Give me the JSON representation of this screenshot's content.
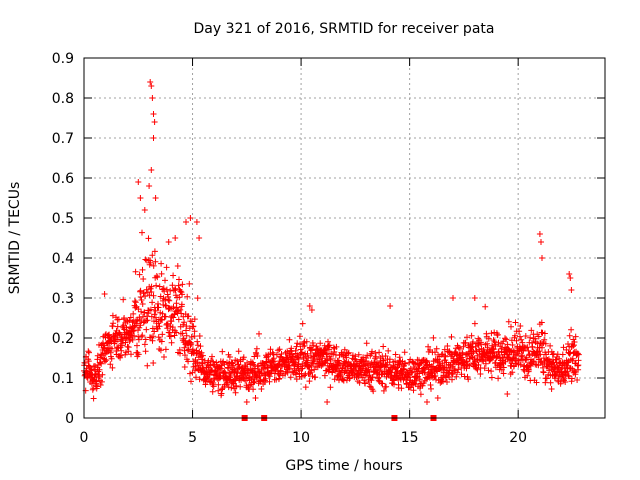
{
  "chart_data": {
    "type": "scatter",
    "title": "Day 321 of 2016, SRMTID for receiver pata",
    "xlabel": "GPS time / hours",
    "ylabel": "SRMTID / TECUs",
    "xlim": [
      0,
      24
    ],
    "ylim": [
      0,
      0.9
    ],
    "x_ticks": [
      0,
      5,
      10,
      15,
      20
    ],
    "x_tick_labels": [
      "0",
      "5",
      "10",
      "15",
      "20"
    ],
    "y_ticks": [
      0,
      0.1,
      0.2,
      0.3,
      0.4,
      0.5,
      0.6,
      0.7,
      0.8,
      0.9
    ],
    "y_tick_labels": [
      "0",
      "0.1",
      "0.2",
      "0.3",
      "0.4",
      "0.5",
      "0.6",
      "0.7",
      "0.8",
      "0.9"
    ],
    "grid": true,
    "marker_color": "#ff0000",
    "series": [
      {
        "name": "SRMTID",
        "marker": "plus",
        "profile_hours": [
          0.0,
          0.5,
          1.0,
          1.5,
          2.0,
          2.5,
          3.0,
          3.5,
          4.0,
          4.5,
          5.0,
          5.5,
          6.0,
          7.0,
          8.0,
          9.0,
          10.0,
          11.0,
          12.0,
          13.0,
          14.0,
          15.0,
          16.0,
          17.0,
          18.0,
          19.0,
          20.0,
          20.5,
          21.0,
          21.5,
          22.0,
          22.5,
          22.8
        ],
        "profile_median": [
          0.11,
          0.1,
          0.17,
          0.21,
          0.2,
          0.24,
          0.3,
          0.26,
          0.28,
          0.24,
          0.18,
          0.12,
          0.11,
          0.11,
          0.12,
          0.13,
          0.14,
          0.15,
          0.13,
          0.12,
          0.12,
          0.11,
          0.12,
          0.14,
          0.16,
          0.16,
          0.16,
          0.15,
          0.17,
          0.12,
          0.12,
          0.15,
          0.14
        ],
        "profile_spread": [
          0.04,
          0.05,
          0.05,
          0.05,
          0.06,
          0.1,
          0.15,
          0.1,
          0.09,
          0.08,
          0.1,
          0.04,
          0.04,
          0.04,
          0.04,
          0.04,
          0.05,
          0.04,
          0.04,
          0.04,
          0.04,
          0.04,
          0.04,
          0.05,
          0.05,
          0.05,
          0.05,
          0.05,
          0.07,
          0.04,
          0.04,
          0.06,
          0.04
        ],
        "peaks": [
          {
            "x": 3.05,
            "y": 0.84
          },
          {
            "x": 3.1,
            "y": 0.83
          },
          {
            "x": 3.15,
            "y": 0.8
          },
          {
            "x": 3.2,
            "y": 0.76
          },
          {
            "x": 3.25,
            "y": 0.74
          },
          {
            "x": 3.2,
            "y": 0.7
          },
          {
            "x": 3.1,
            "y": 0.62
          },
          {
            "x": 3.0,
            "y": 0.58
          },
          {
            "x": 2.5,
            "y": 0.59
          },
          {
            "x": 2.6,
            "y": 0.55
          },
          {
            "x": 2.8,
            "y": 0.52
          },
          {
            "x": 3.3,
            "y": 0.55
          },
          {
            "x": 4.9,
            "y": 0.5
          },
          {
            "x": 4.7,
            "y": 0.49
          },
          {
            "x": 5.2,
            "y": 0.49
          },
          {
            "x": 5.3,
            "y": 0.45
          },
          {
            "x": 3.9,
            "y": 0.44
          },
          {
            "x": 4.2,
            "y": 0.45
          },
          {
            "x": 21.0,
            "y": 0.46
          },
          {
            "x": 21.05,
            "y": 0.44
          },
          {
            "x": 21.1,
            "y": 0.4
          },
          {
            "x": 22.35,
            "y": 0.36
          },
          {
            "x": 22.4,
            "y": 0.35
          },
          {
            "x": 22.45,
            "y": 0.32
          },
          {
            "x": 10.4,
            "y": 0.28
          },
          {
            "x": 10.5,
            "y": 0.27
          },
          {
            "x": 14.1,
            "y": 0.28
          },
          {
            "x": 17.0,
            "y": 0.3
          },
          {
            "x": 18.0,
            "y": 0.3
          },
          {
            "x": 0.95,
            "y": 0.31
          },
          {
            "x": 7.5,
            "y": 0.04
          },
          {
            "x": 7.9,
            "y": 0.05
          },
          {
            "x": 11.2,
            "y": 0.04
          },
          {
            "x": 15.8,
            "y": 0.04
          },
          {
            "x": 16.3,
            "y": 0.05
          },
          {
            "x": 19.5,
            "y": 0.06
          }
        ],
        "zero_points": [
          {
            "x": 7.4,
            "y": 0
          },
          {
            "x": 8.3,
            "y": 0
          },
          {
            "x": 14.3,
            "y": 0
          },
          {
            "x": 16.1,
            "y": 0
          }
        ]
      }
    ]
  }
}
